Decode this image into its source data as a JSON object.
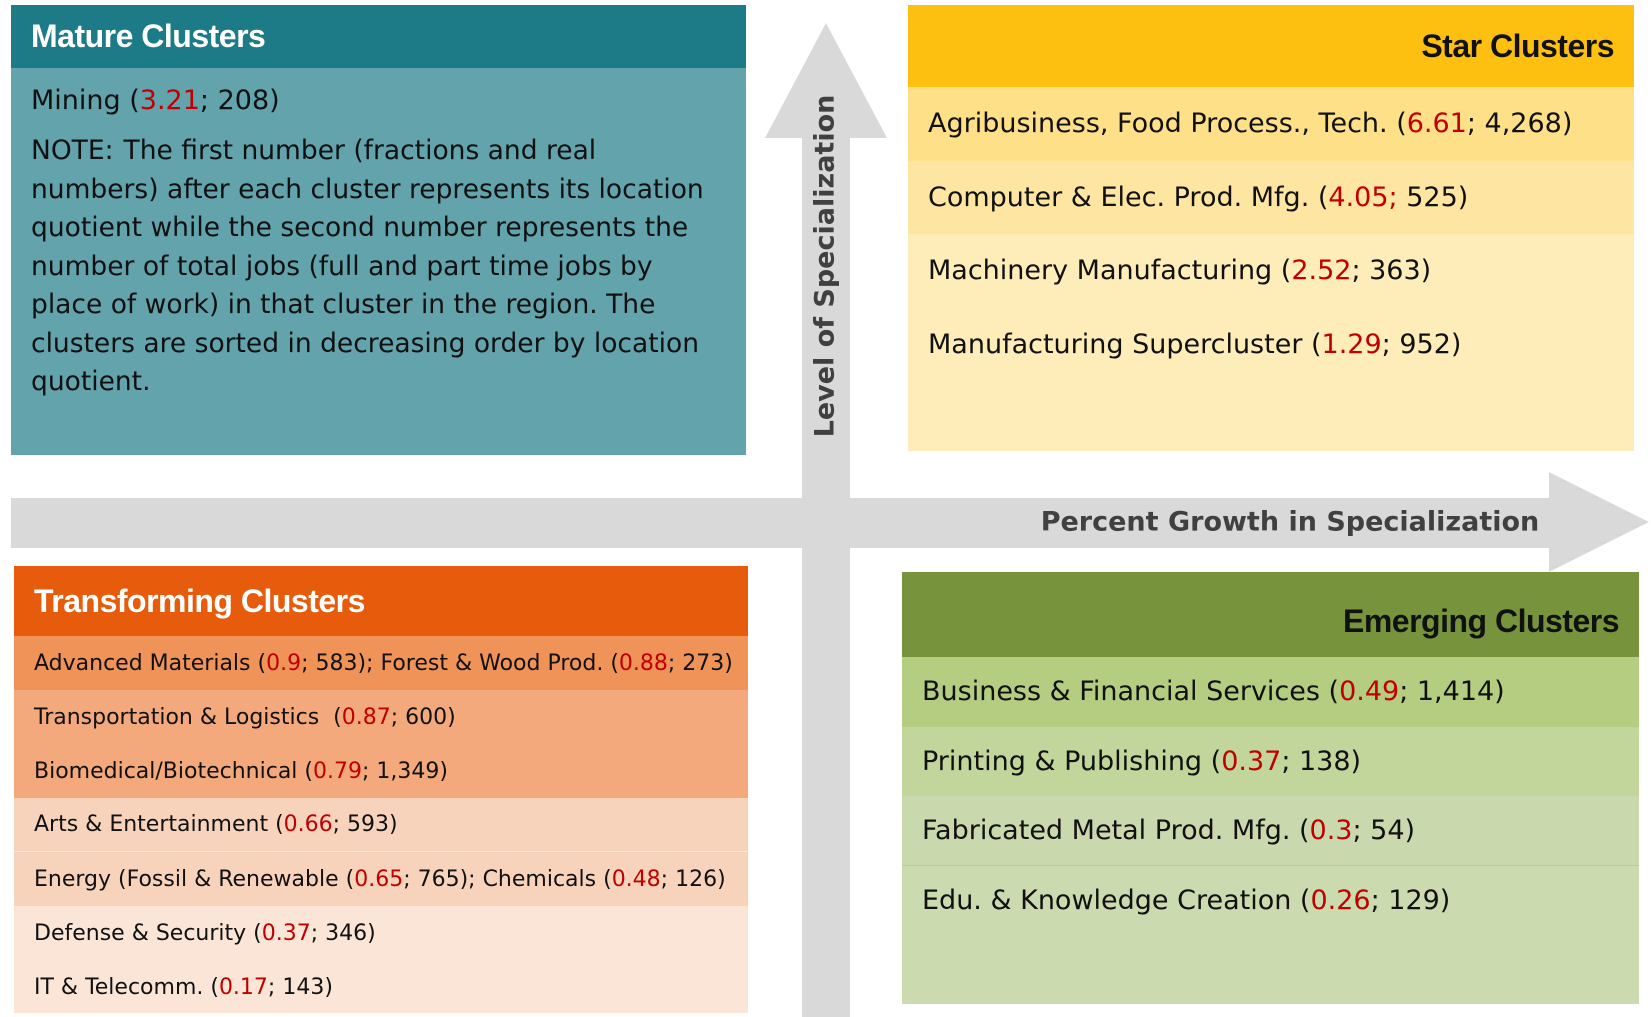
{
  "axes": {
    "vertical": "Level of Specialization",
    "horizontal": "Percent Growth in Specialization"
  },
  "quadrants": [
    {
      "title": "Mature Clusters",
      "items": [
        [
          "Mining (",
          "3.21",
          "; 208)"
        ]
      ],
      "note": {
        "label": "NOTE:",
        "text": "The first number (fractions and real numbers) after each cluster represents its location quotient while the second number represents the number of total jobs (full and part time jobs by place of work) in that cluster in the region. The clusters are sorted in decreasing order by location quotient."
      }
    },
    {
      "title": "Star Clusters",
      "items": [
        [
          "Agribusiness, Food Process., Tech. (",
          "6.61",
          "; 4,268)"
        ],
        [
          "Computer & Elec. Prod. Mfg. (",
          "4.05;",
          " 525)"
        ],
        [
          "Machinery Manufacturing (",
          "2.52",
          "; 363)"
        ],
        [
          "Manufacturing Supercluster (",
          "1.29",
          "; 952)"
        ]
      ]
    },
    {
      "title": "Transforming Clusters",
      "items": [
        [
          "Advanced Materials (",
          "0.9",
          "; 583); Forest & Wood Prod. (",
          "0.88",
          "; 273)"
        ],
        [
          "Transportation & Logistics  (",
          "0.87",
          "; 600)"
        ],
        [
          "Biomedical/Biotechnical (",
          "0.79",
          "; 1,349)"
        ],
        [
          "Arts & Entertainment (",
          "0.66",
          "; 593)"
        ],
        [
          "Energy (Fossil & Renewable (",
          "0.65",
          "; 765); Chemicals (",
          "0.48",
          "; 126)"
        ],
        [
          "Defense & Security (",
          "0.37",
          "; 346)"
        ],
        [
          "IT & Telecomm. (",
          "0.17",
          "; 143)"
        ]
      ]
    },
    {
      "title": "Emerging Clusters",
      "items": [
        [
          "Business & Financial Services (",
          "0.49",
          "; 1,414)"
        ],
        [
          "Printing & Publishing (",
          "0.37",
          "; 138)"
        ],
        [
          "Fabricated Metal Prod. Mfg. (",
          "0.3",
          "; 54)"
        ],
        [
          "Edu. & Knowledge Creation (",
          "0.26",
          "; 129)"
        ]
      ]
    }
  ]
}
